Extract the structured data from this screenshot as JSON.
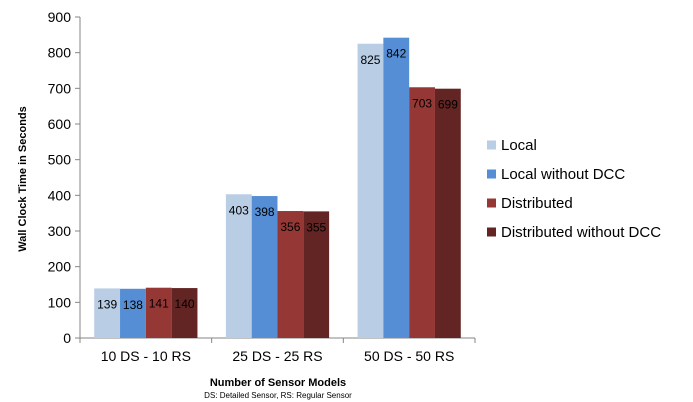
{
  "chart_data": {
    "type": "bar",
    "categories": [
      "10 DS - 10 RS",
      "25 DS - 25 RS",
      "50 DS - 50 RS"
    ],
    "series": [
      {
        "name": "Local",
        "color": "#b9cde5",
        "values": [
          139,
          403,
          825
        ]
      },
      {
        "name": "Local without DCC",
        "color": "#558ed5",
        "values": [
          138,
          398,
          842
        ]
      },
      {
        "name": "Distributed",
        "color": "#953735",
        "values": [
          141,
          356,
          703
        ]
      },
      {
        "name": "Distributed without DCC",
        "color": "#632523",
        "values": [
          140,
          355,
          699
        ]
      }
    ],
    "xlabel": "Number of Sensor Models",
    "xsublabel": "DS: Detailed Sensor, RS: Regular Sensor",
    "ylabel": "Wall Clock Time in Seconds",
    "ylim": [
      0,
      900
    ],
    "yticks": [
      0,
      100,
      200,
      300,
      400,
      500,
      600,
      700,
      800,
      900
    ],
    "legend_position": "right",
    "grid": false
  }
}
